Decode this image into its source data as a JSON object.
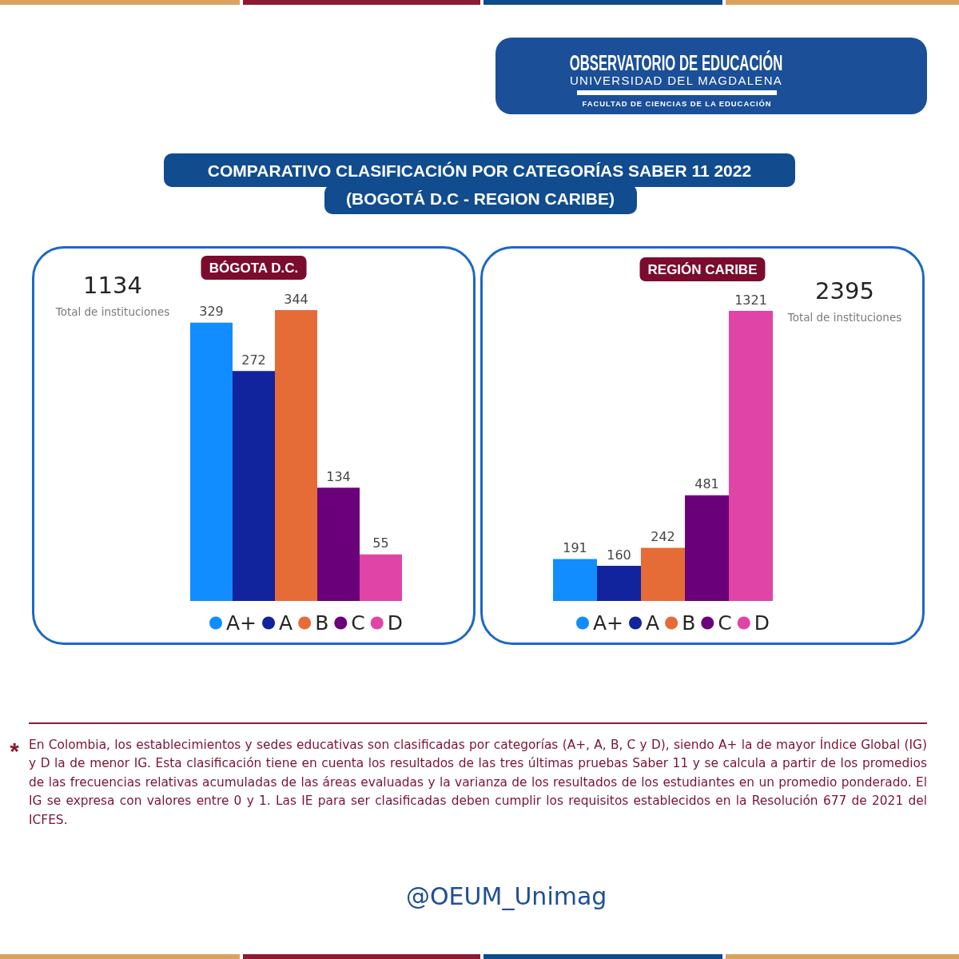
{
  "chart_data": [
    {
      "type": "other",
      "title": "COMPARATIVO CLASIFICACIÓN POR CATEGORÍAS SABER 11 2022",
      "subtitle": "(BOGOTÁ D.C - REGION CARIBE)",
      "annotations": [
        "OBSERVATORIO DE EDUCACIÓN",
        "UNIVERSIDAD DEL MAGDALENA",
        "FACULTAD DE CIENCIAS DE LA EDUCACIÓN"
      ]
    },
    {
      "type": "bar",
      "title": "BÓGOTA D.C.",
      "categories": [
        null
      ],
      "series": [
        {
          "name": "A+",
          "color": "#118dff",
          "values": [
            329
          ]
        },
        {
          "name": "A",
          "color": "#12239e",
          "values": [
            272
          ]
        },
        {
          "name": "B",
          "color": "#e66c37",
          "values": [
            344
          ]
        },
        {
          "name": "C",
          "color": "#6b007b",
          "values": [
            134
          ]
        },
        {
          "name": "D",
          "color": "#e044a7",
          "values": [
            55
          ]
        }
      ],
      "data_labels": true,
      "legend": "bottom",
      "tick_labels": false,
      "annotations": [
        "1134",
        "Total de instituciones"
      ]
    },
    {
      "type": "bar",
      "title": "REGIÓN CARIBE",
      "categories": [
        null
      ],
      "series": [
        {
          "name": "A+",
          "color": "#118dff",
          "values": [
            191
          ]
        },
        {
          "name": "A",
          "color": "#12239e",
          "values": [
            160
          ]
        },
        {
          "name": "B",
          "color": "#e66c37",
          "values": [
            242
          ]
        },
        {
          "name": "C",
          "color": "#6b007b",
          "values": [
            481
          ]
        },
        {
          "name": "D",
          "color": "#e044a7",
          "values": [
            1321
          ]
        }
      ],
      "data_labels": true,
      "legend": "bottom",
      "tick_labels": false,
      "annotations": [
        "2395",
        "Total de instituciones"
      ]
    },
    {
      "type": "other",
      "annotations": [
        "*",
        "En Colombia, los establecimientos y sedes educativas son clasificadas por categorías (A+, A, B, C y D), siendo A+ la de mayor Índice Global (IG) y D la de menor IG. Esta clasificación tiene en cuenta los resultados de las tres últimas pruebas Saber 11 y se calcula a partir de los promedios de las frecuencias relativas acumuladas de las áreas evaluadas y la varianza de los resultados de los estudiantes en un promedio ponderado. El IG se expresa con valores entre 0 y 1. Las IE para ser clasificadas deben cumplir los requisitos establecidos en la Resolución 677 de 2021 del ICFES.",
        "@OEUM_Unimag"
      ]
    }
  ]
}
